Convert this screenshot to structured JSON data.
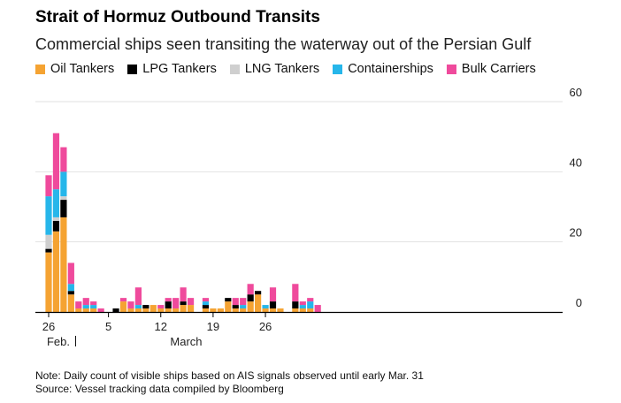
{
  "title": "Strait of Hormuz Outbound Transits",
  "subtitle": "Commercial ships seen transiting the waterway out of the Persian Gulf",
  "note": "Note: Daily count of visible ships based on AIS signals observed until early Mar. 31",
  "source": "Source: Vessel tracking data compiled by Bloomberg",
  "chart_data": {
    "type": "bar",
    "stacked": true,
    "grid": true,
    "legend_position": "top",
    "ylim": [
      0,
      60
    ],
    "y_ticks": [
      0,
      20,
      40,
      60
    ],
    "x_tick_labels": [
      {
        "label": "26",
        "index": 0
      },
      {
        "label": "5",
        "index": 8
      },
      {
        "label": "12",
        "index": 15
      },
      {
        "label": "19",
        "index": 22
      },
      {
        "label": "26",
        "index": 29
      }
    ],
    "month_labels": [
      {
        "label": "Feb.",
        "index": 1.3
      },
      {
        "label": "March",
        "index": 18.4
      }
    ],
    "month_divider_index": 3.6,
    "categories": [
      "Feb 26",
      "Feb 27",
      "Feb 28",
      "Mar 1",
      "Mar 2",
      "Mar 3",
      "Mar 4",
      "Mar 5",
      "Mar 6",
      "Mar 7",
      "Mar 8",
      "Mar 9",
      "Mar 10",
      "Mar 11",
      "Mar 12",
      "Mar 13",
      "Mar 14",
      "Mar 15",
      "Mar 16",
      "Mar 17",
      "Mar 18",
      "Mar 19",
      "Mar 20",
      "Mar 21",
      "Mar 22",
      "Mar 23",
      "Mar 24",
      "Mar 25",
      "Mar 26",
      "Mar 27",
      "Mar 28",
      "Mar 29",
      "Mar 30",
      "Mar 31",
      "Apr 1",
      "Apr 2",
      "Apr 3"
    ],
    "series": [
      {
        "name": "Oil Tankers",
        "color": "#f5a332",
        "values": [
          17,
          23,
          27,
          5,
          1,
          1,
          1,
          0,
          0,
          0,
          3,
          1,
          1,
          1,
          2,
          1,
          1,
          1,
          2,
          2,
          0,
          1,
          1,
          1,
          3,
          1,
          1,
          3,
          5,
          1,
          1,
          1,
          0,
          1,
          1,
          1,
          0
        ]
      },
      {
        "name": "LPG Tankers",
        "color": "#000000",
        "values": [
          1,
          3,
          5,
          1,
          0,
          0,
          0,
          0,
          0,
          1,
          0,
          0,
          0,
          1,
          0,
          0,
          2,
          0,
          1,
          0,
          0,
          1,
          0,
          0,
          1,
          1,
          0,
          2,
          1,
          0,
          2,
          0,
          0,
          2,
          0,
          0,
          0
        ]
      },
      {
        "name": "LNG Tankers",
        "color": "#cfcfcf",
        "values": [
          4,
          1,
          1,
          0,
          0,
          0,
          0,
          0,
          0,
          0,
          0,
          0,
          0,
          0,
          0,
          0,
          0,
          0,
          0,
          0,
          0,
          0,
          0,
          0,
          0,
          0,
          0,
          0,
          0,
          0,
          0,
          0,
          0,
          0,
          0,
          0,
          0
        ]
      },
      {
        "name": "Containerships",
        "color": "#26b6ea",
        "values": [
          11,
          8,
          7,
          2,
          0,
          1,
          1,
          0,
          0,
          0,
          0,
          0,
          1,
          0,
          0,
          0,
          0,
          0,
          0,
          0,
          0,
          1,
          0,
          0,
          0,
          0,
          1,
          0,
          0,
          1,
          0,
          0,
          0,
          0,
          1,
          2,
          0
        ]
      },
      {
        "name": "Bulk Carriers",
        "color": "#ef4a9c",
        "values": [
          6,
          16,
          7,
          6,
          2,
          2,
          1,
          1,
          0,
          0,
          1,
          2,
          5,
          0,
          0,
          1,
          1,
          3,
          4,
          2,
          0,
          1,
          0,
          0,
          0,
          2,
          2,
          3,
          0,
          0,
          4,
          0,
          0,
          5,
          1,
          1,
          2
        ]
      }
    ]
  }
}
